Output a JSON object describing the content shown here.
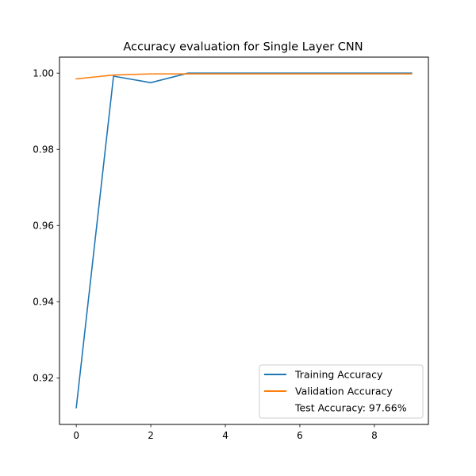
{
  "chart_data": {
    "type": "line",
    "title": "Accuracy evaluation for Single Layer CNN",
    "xlabel": "",
    "ylabel": "",
    "xlim": [
      -0.45,
      9.45
    ],
    "ylim": [
      0.9078,
      1.0042
    ],
    "x_ticks": [
      0,
      2,
      4,
      6,
      8
    ],
    "y_ticks": [
      0.92,
      0.94,
      0.96,
      0.98,
      1.0
    ],
    "y_tick_labels": [
      "0.92",
      "0.94",
      "0.96",
      "0.98",
      "1.00"
    ],
    "grid": false,
    "legend_position": "lower-right",
    "x": [
      0,
      1,
      2,
      3,
      4,
      5,
      6,
      7,
      8,
      9
    ],
    "series": [
      {
        "name": "Training Accuracy",
        "color": "#1f77b4",
        "values": [
          0.9122,
          0.9992,
          0.9975,
          1.0,
          1.0,
          1.0,
          1.0,
          1.0,
          1.0,
          1.0
        ]
      },
      {
        "name": "Validation Accuracy",
        "color": "#ff7f0e",
        "values": [
          0.9985,
          0.9995,
          0.9998,
          0.9998,
          0.9998,
          0.9998,
          0.9998,
          0.9998,
          0.9998,
          0.9998
        ]
      }
    ],
    "legend_extra": "Test Accuracy: 97.66%"
  }
}
